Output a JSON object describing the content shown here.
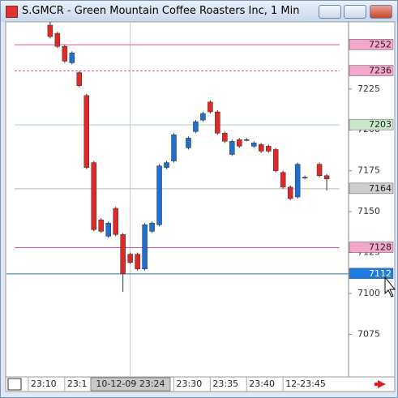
{
  "window": {
    "title": "S.GMCR - Green Mountain Coffee Roasters Inc, 1 Min"
  },
  "chart_data": {
    "type": "candlestick",
    "x": [
      13,
      14,
      15,
      16,
      17,
      18,
      19,
      20,
      21,
      22,
      23,
      24,
      25,
      26,
      27,
      28,
      29,
      30,
      32,
      33,
      34,
      35,
      36,
      37,
      38,
      39,
      40,
      41,
      42,
      43,
      44,
      45,
      46,
      47,
      48,
      50,
      51
    ],
    "open": [
      7264,
      7259,
      7251,
      7241,
      7235,
      7221,
      7180,
      7145,
      7135,
      7152,
      7136,
      7124,
      7124,
      7115,
      7138,
      7142,
      7177,
      7181,
      7189,
      7199,
      7206,
      7217,
      7211,
      7198,
      7185,
      7194,
      7194,
      7190,
      7191,
      7190,
      7188,
      7174,
      7165,
      7159,
      7171,
      7179,
      7172
    ],
    "high": [
      7266,
      7260,
      7252,
      7248,
      7236,
      7222,
      7181,
      7146,
      7144,
      7153,
      7137,
      7125,
      7125,
      7143,
      7144,
      7179,
      7181,
      7198,
      7196,
      7206,
      7211,
      7218,
      7212,
      7199,
      7194,
      7195,
      7195,
      7193,
      7192,
      7191,
      7189,
      7175,
      7166,
      7180,
      7172,
      7180,
      7173
    ],
    "low": [
      7256,
      7250,
      7241,
      7240,
      7226,
      7176,
      7138,
      7137,
      7134,
      7135,
      7101,
      7118,
      7114,
      7114,
      7137,
      7141,
      7176,
      7180,
      7188,
      7198,
      7205,
      7210,
      7197,
      7192,
      7184,
      7189,
      7193,
      7189,
      7186,
      7186,
      7174,
      7164,
      7157,
      7158,
      7170,
      7171,
      7163
    ],
    "close": [
      7257,
      7251,
      7242,
      7247,
      7227,
      7177,
      7139,
      7138,
      7143,
      7136,
      7112,
      7119,
      7115,
      7142,
      7143,
      7178,
      7180,
      7197,
      7195,
      7205,
      7210,
      7211,
      7198,
      7193,
      7193,
      7190,
      7194,
      7192,
      7187,
      7187,
      7175,
      7165,
      7158,
      7179,
      7171,
      7172,
      7170
    ],
    "up_color": "#1f6fd0",
    "down_color": "#e02828",
    "xlim": [
      7,
      54
    ],
    "ylim": [
      7049,
      7266
    ],
    "xticks": [
      {
        "value": 10,
        "label": "23:10"
      },
      {
        "value": 15,
        "label": "23:1"
      },
      {
        "value": 30,
        "label": "23:30"
      },
      {
        "value": 35,
        "label": "23:35"
      },
      {
        "value": 40,
        "label": "23:40"
      },
      {
        "value": 45,
        "label": "12-23:45"
      }
    ],
    "yticks": [
      7225,
      7200,
      7175,
      7150,
      7125,
      7100,
      7075
    ],
    "crosshair": {
      "x": 24,
      "label": "10-12-09 23:24"
    },
    "levels": [
      {
        "value": 7252,
        "color": "#e0509a",
        "fill": "#f4a6cc",
        "dashed": false
      },
      {
        "value": 7236,
        "color": "#e0509a",
        "fill": "#f4a6cc",
        "dashed": true
      },
      {
        "value": 7203,
        "color": "#a8d8a8",
        "fill": "#cce8cc",
        "dashed": false
      },
      {
        "value": 7164,
        "color": "#b8b8b8",
        "fill": "#cfcfcf",
        "dashed": false
      },
      {
        "value": 7128,
        "color": "#e0509a",
        "fill": "#f4a6cc",
        "dashed": false
      },
      {
        "value": 7112,
        "color": "#1f6fd0",
        "fill": "#1f7be0",
        "dashed": false
      }
    ]
  }
}
